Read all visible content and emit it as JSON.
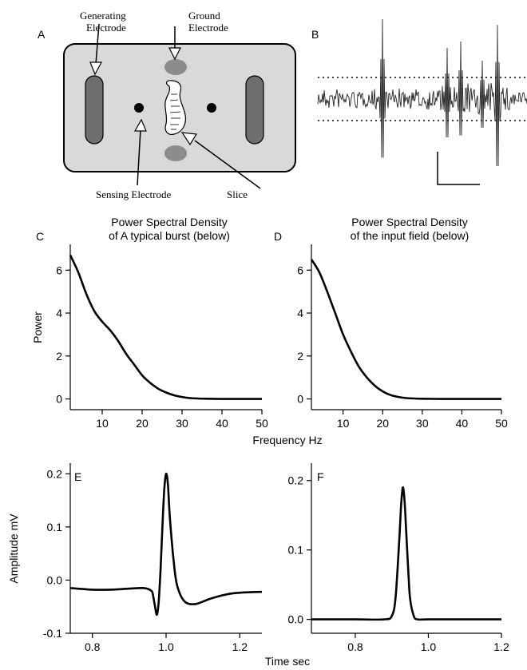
{
  "panel_a": {
    "letter": "A",
    "labels": {
      "generating_line1": "Generating",
      "generating_line2": "Electrode",
      "ground_line1": "Ground",
      "ground_line2": "Electrode",
      "sensing": "Sensing Electrode",
      "slice": "Slice"
    }
  },
  "panel_b": {
    "letter": "B"
  },
  "shared_labels": {
    "frequency_axis": "Frequency Hz",
    "time_axis": "Time sec",
    "amplitude_axis": "Amplitude mV"
  },
  "chart_data": [
    {
      "panel": "C",
      "type": "line",
      "title_line1": "Power Spectral Density",
      "title_line2": "of A typical burst (below)",
      "ylabel": "Power",
      "xlim": [
        2,
        50
      ],
      "ylim": [
        -0.5,
        7.2
      ],
      "xticks": [
        10,
        20,
        30,
        40,
        50
      ],
      "yticks": [
        0,
        2,
        4,
        6
      ],
      "series": [
        {
          "x": [
            2,
            4,
            6,
            8,
            10,
            12,
            14,
            16,
            18,
            20,
            22,
            24,
            26,
            28,
            30,
            32,
            34,
            36,
            40,
            45,
            50
          ],
          "y": [
            6.7,
            5.9,
            4.9,
            4.1,
            3.6,
            3.2,
            2.7,
            2.1,
            1.6,
            1.1,
            0.75,
            0.48,
            0.3,
            0.17,
            0.09,
            0.04,
            0.02,
            0.01,
            0.0,
            0.0,
            0.0
          ]
        }
      ]
    },
    {
      "panel": "D",
      "type": "line",
      "title_line1": "Power Spectral Density",
      "title_line2": "of the input field (below)",
      "ylabel": "",
      "xlim": [
        2,
        50
      ],
      "ylim": [
        -0.5,
        7.2
      ],
      "xticks": [
        10,
        20,
        30,
        40,
        50
      ],
      "yticks": [
        0,
        2,
        4,
        6
      ],
      "series": [
        {
          "x": [
            2,
            4,
            6,
            8,
            10,
            12,
            14,
            16,
            18,
            20,
            22,
            24,
            26,
            28,
            30,
            35,
            40,
            45,
            50
          ],
          "y": [
            6.5,
            5.9,
            5.0,
            4.0,
            3.0,
            2.2,
            1.5,
            1.0,
            0.62,
            0.35,
            0.18,
            0.09,
            0.04,
            0.02,
            0.01,
            0.0,
            0.0,
            0.0,
            0.0
          ]
        }
      ]
    },
    {
      "panel": "E",
      "type": "line",
      "ylabel": "Amplitude mV",
      "xlim": [
        0.74,
        1.26
      ],
      "ylim": [
        -0.1,
        0.22
      ],
      "xticks": [
        0.8,
        1.0,
        1.2
      ],
      "xtick_labels": [
        "0.8",
        "1.0",
        "1.2"
      ],
      "yticks": [
        -0.1,
        0.0,
        0.1,
        0.2
      ],
      "ytick_labels": [
        "-0.1",
        "0.0",
        "0.1",
        "0.2"
      ],
      "series": [
        {
          "x": [
            0.74,
            0.8,
            0.85,
            0.9,
            0.94,
            0.96,
            0.965,
            0.97,
            0.975,
            0.98,
            0.985,
            0.99,
            0.995,
            1.0,
            1.005,
            1.01,
            1.02,
            1.03,
            1.05,
            1.08,
            1.12,
            1.18,
            1.26
          ],
          "y": [
            -0.015,
            -0.018,
            -0.018,
            -0.016,
            -0.015,
            -0.02,
            -0.03,
            -0.05,
            -0.065,
            -0.04,
            0.02,
            0.1,
            0.17,
            0.2,
            0.18,
            0.12,
            0.04,
            -0.01,
            -0.04,
            -0.045,
            -0.035,
            -0.025,
            -0.022
          ]
        }
      ]
    },
    {
      "panel": "F",
      "type": "line",
      "ylabel": "",
      "xlim": [
        0.68,
        1.2
      ],
      "ylim": [
        -0.02,
        0.225
      ],
      "xticks": [
        0.8,
        1.0,
        1.2
      ],
      "xtick_labels": [
        "0.8",
        "1.0",
        "1.2"
      ],
      "yticks": [
        0.0,
        0.1,
        0.2
      ],
      "ytick_labels": [
        "0.0",
        "0.1",
        "0.2"
      ],
      "series": [
        {
          "x": [
            0.68,
            0.8,
            0.88,
            0.9,
            0.91,
            0.92,
            0.925,
            0.93,
            0.935,
            0.94,
            0.945,
            0.95,
            0.96,
            0.97,
            1.0,
            1.1,
            1.2
          ],
          "y": [
            0.0,
            0.0,
            0.0,
            0.005,
            0.03,
            0.11,
            0.16,
            0.19,
            0.17,
            0.12,
            0.07,
            0.03,
            0.005,
            0.0,
            0.0,
            0.0,
            0.0
          ]
        }
      ]
    }
  ]
}
